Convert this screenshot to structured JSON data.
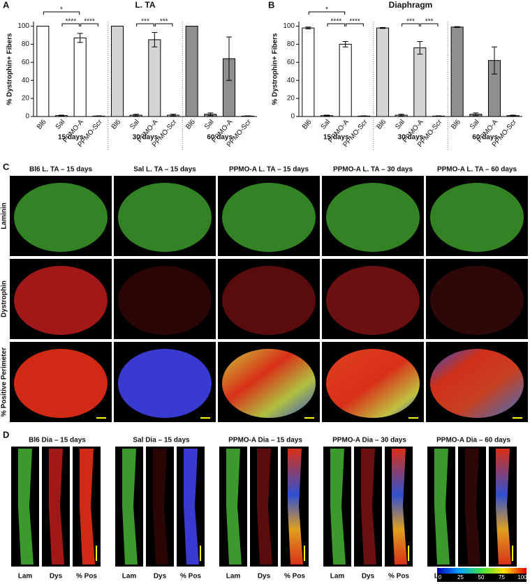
{
  "chart_data": [
    {
      "type": "bar",
      "panel": "A",
      "title": "L. TA",
      "y_label": "% Dystrophin+ Fibers",
      "categories": [
        "Bl6",
        "Sal",
        "PPMO-A",
        "PPMO-Scr",
        "Bl6",
        "Sal",
        "PPMO-A",
        "PPMO-Scr",
        "Bl6",
        "Sal",
        "PPMO-A",
        "PPMO-Scr"
      ],
      "groups": [
        "15 days",
        "30 days",
        "60 days"
      ],
      "values": [
        100,
        1,
        87,
        0.5,
        100,
        1.5,
        85,
        1.5,
        100,
        2.5,
        64,
        0.5
      ],
      "errors": [
        0,
        0.5,
        5,
        0.3,
        0,
        1,
        8,
        1,
        0,
        1.5,
        24,
        0.3
      ],
      "colors": [
        "#ffffff",
        "#ffffff",
        "#ffffff",
        "#ffffff",
        "#d4d4d4",
        "#d4d4d4",
        "#d4d4d4",
        "#d4d4d4",
        "#8f8f8f",
        "#8f8f8f",
        "#8f8f8f",
        "#8f8f8f"
      ],
      "ylim": [
        0,
        105
      ],
      "yticks": [
        0,
        20,
        40,
        60,
        80,
        100
      ],
      "annotations": [
        "*",
        "****",
        "****",
        "***",
        "***"
      ]
    },
    {
      "type": "bar",
      "panel": "B",
      "title": "Diaphragm",
      "y_label": "% Dystrophin+ Fibers",
      "categories": [
        "Bl6",
        "Sal",
        "PPMO-A",
        "PPMO-Scr",
        "Bl6",
        "Sal",
        "PPMO-A",
        "PPMO-Scr",
        "Bl6",
        "Sal",
        "PPMO-A",
        "PPMO-Scr"
      ],
      "groups": [
        "15 days",
        "30 days",
        "60 days"
      ],
      "values": [
        98,
        1,
        80,
        0.5,
        98,
        1.5,
        76,
        0.5,
        99,
        2.5,
        62,
        1
      ],
      "errors": [
        1,
        0.5,
        3,
        0.3,
        0.5,
        1,
        7,
        0.3,
        0.5,
        1.5,
        15,
        0.5
      ],
      "colors": [
        "#ffffff",
        "#ffffff",
        "#ffffff",
        "#ffffff",
        "#d4d4d4",
        "#d4d4d4",
        "#d4d4d4",
        "#d4d4d4",
        "#8f8f8f",
        "#8f8f8f",
        "#8f8f8f",
        "#8f8f8f"
      ],
      "ylim": [
        0,
        105
      ],
      "yticks": [
        0,
        20,
        40,
        60,
        80,
        100
      ],
      "annotations": [
        "*",
        "****",
        "****",
        "***",
        "***"
      ]
    }
  ],
  "panel_c": {
    "label": "C",
    "titles": [
      "Bl6 L. TA – 15 days",
      "Sal L. TA – 15 days",
      "PPMO-A L. TA – 15 days",
      "PPMO-A L. TA – 30 days",
      "PPMO-A L. TA – 60 days"
    ],
    "rows": [
      "Laminin",
      "Dystrophin",
      "% Positive Perimeter"
    ]
  },
  "panel_d": {
    "label": "D",
    "titles": [
      "Bl6 Dia – 15 days",
      "Sal Dia – 15 days",
      "PPMO-A Dia – 15 days",
      "PPMO-A Dia – 30 days",
      "PPMO-A Dia – 60 days"
    ],
    "channels": [
      "Lam",
      "Dys",
      "% Pos"
    ],
    "colorbar_ticks": [
      0,
      25,
      50,
      75,
      100
    ]
  }
}
